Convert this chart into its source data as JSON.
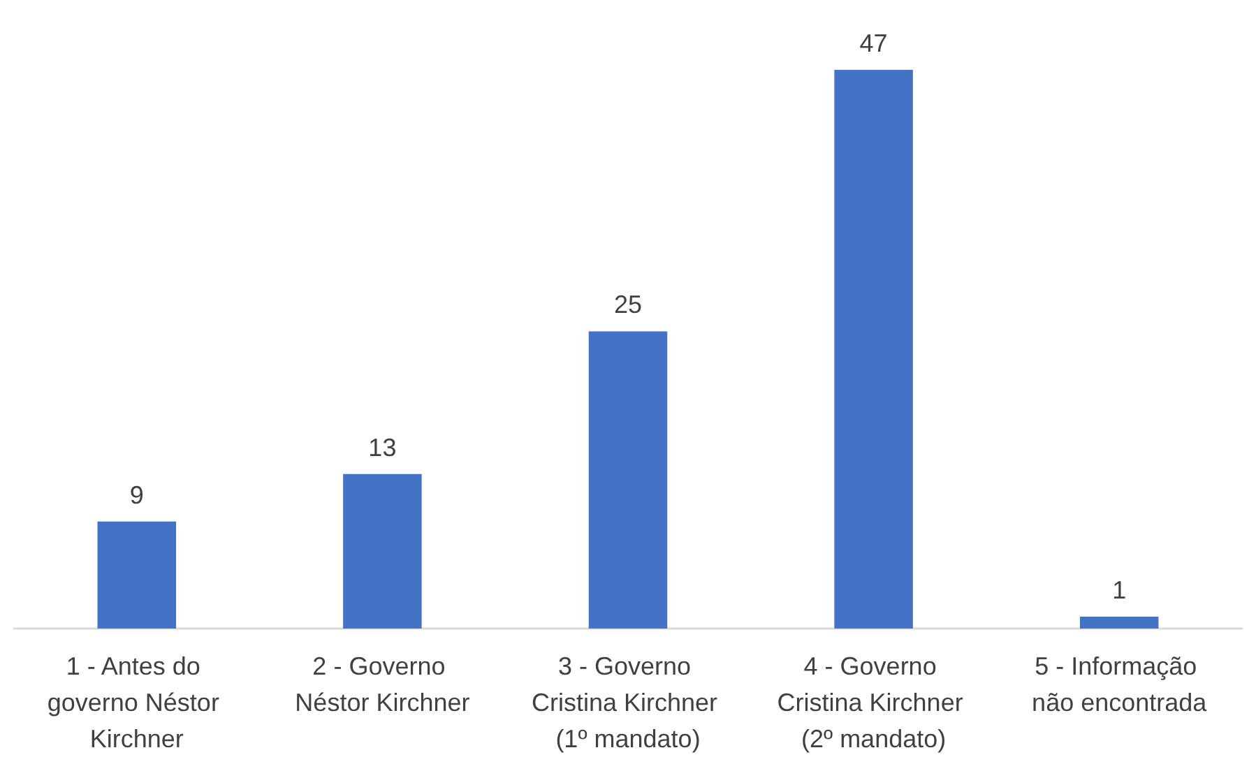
{
  "chart_data": {
    "type": "bar",
    "categories": [
      "1 - Antes do governo Néstor Kirchner",
      "2 - Governo Néstor Kirchner",
      "3 - Governo Cristina Kirchner (1º mandato)",
      "4 - Governo Cristina Kirchner (2º mandato)",
      "5 - Informação não encontrada"
    ],
    "values": [
      9,
      13,
      25,
      47,
      1
    ],
    "color": "#4472c4",
    "data_labels": true
  }
}
